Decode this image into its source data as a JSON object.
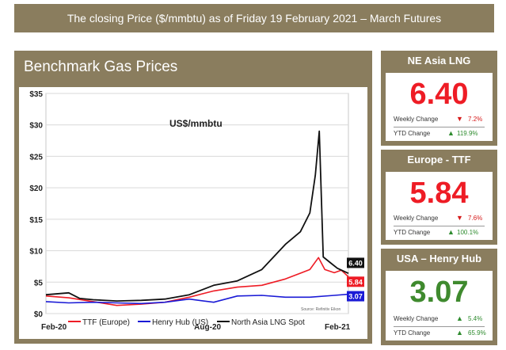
{
  "banner": {
    "text": "The closing Price ($/mmbtu) as of  Friday 19 February 2021 – March Futures"
  },
  "chart_panel": {
    "title": "Benchmark Gas Prices"
  },
  "chart_data": {
    "type": "line",
    "title": "Benchmark Gas Prices",
    "unit_label": "US$/mmbtu",
    "source_note": "Source: Refinitiv Eikon",
    "ylim": [
      0,
      35
    ],
    "y_ticks": [
      "$0",
      "$5",
      "$10",
      "$15",
      "$20",
      "$25",
      "$30",
      "$35"
    ],
    "x_ticks": [
      "Feb-20",
      "Aug-20",
      "Feb-21"
    ],
    "x_range": [
      "2020-02-01",
      "2021-02-19"
    ],
    "grid": true,
    "legend_position": "bottom",
    "series": [
      {
        "name": "TTF (Europe)",
        "color": "#ee1c25",
        "end_label": "5.84",
        "points": [
          [
            "2020-02-01",
            2.8
          ],
          [
            "2020-03-01",
            2.5
          ],
          [
            "2020-04-01",
            1.9
          ],
          [
            "2020-05-01",
            1.3
          ],
          [
            "2020-06-01",
            1.5
          ],
          [
            "2020-07-01",
            1.8
          ],
          [
            "2020-08-01",
            2.6
          ],
          [
            "2020-09-01",
            3.6
          ],
          [
            "2020-10-01",
            4.2
          ],
          [
            "2020-11-01",
            4.5
          ],
          [
            "2020-12-01",
            5.5
          ],
          [
            "2021-01-01",
            7.0
          ],
          [
            "2021-01-12",
            8.9
          ],
          [
            "2021-01-20",
            7.0
          ],
          [
            "2021-02-01",
            6.5
          ],
          [
            "2021-02-10",
            6.9
          ],
          [
            "2021-02-19",
            5.84
          ]
        ]
      },
      {
        "name": "Henry Hub (US)",
        "color": "#1a1ad6",
        "end_label": "3.07",
        "points": [
          [
            "2020-02-01",
            1.9
          ],
          [
            "2020-03-01",
            1.7
          ],
          [
            "2020-04-01",
            1.8
          ],
          [
            "2020-05-01",
            1.7
          ],
          [
            "2020-06-01",
            1.6
          ],
          [
            "2020-07-01",
            1.8
          ],
          [
            "2020-08-01",
            2.3
          ],
          [
            "2020-09-01",
            1.8
          ],
          [
            "2020-10-01",
            2.8
          ],
          [
            "2020-11-01",
            2.9
          ],
          [
            "2020-12-01",
            2.6
          ],
          [
            "2021-01-01",
            2.6
          ],
          [
            "2021-02-01",
            2.9
          ],
          [
            "2021-02-19",
            3.07
          ]
        ]
      },
      {
        "name": "North Asia LNG Spot",
        "color": "#111111",
        "end_label": "6.40",
        "points": [
          [
            "2020-02-01",
            3.0
          ],
          [
            "2020-03-01",
            3.3
          ],
          [
            "2020-03-15",
            2.4
          ],
          [
            "2020-04-01",
            2.2
          ],
          [
            "2020-05-01",
            2.0
          ],
          [
            "2020-06-01",
            2.1
          ],
          [
            "2020-07-01",
            2.3
          ],
          [
            "2020-08-01",
            3.0
          ],
          [
            "2020-09-01",
            4.5
          ],
          [
            "2020-10-01",
            5.2
          ],
          [
            "2020-11-01",
            7.0
          ],
          [
            "2020-12-01",
            11.0
          ],
          [
            "2020-12-20",
            13.0
          ],
          [
            "2021-01-01",
            16.0
          ],
          [
            "2021-01-08",
            22.0
          ],
          [
            "2021-01-13",
            29.0
          ],
          [
            "2021-01-18",
            9.0
          ],
          [
            "2021-01-28",
            8.0
          ],
          [
            "2021-02-05",
            7.2
          ],
          [
            "2021-02-19",
            6.4
          ]
        ]
      }
    ]
  },
  "cards": [
    {
      "id": "ne-asia-lng",
      "title": "NE Asia LNG",
      "price": "6.40",
      "price_color": "#ee1c25",
      "weekly_label": "Weekly Change",
      "weekly_value": "7.2%",
      "weekly_dir": "down",
      "ytd_label": "YTD Change",
      "ytd_value": "119.9%",
      "ytd_dir": "up"
    },
    {
      "id": "europe-ttf",
      "title": "Europe - TTF",
      "price": "5.84",
      "price_color": "#ee1c25",
      "weekly_label": "Weekly Change",
      "weekly_value": "7.6%",
      "weekly_dir": "down",
      "ytd_label": "YTD Change",
      "ytd_value": "100.1%",
      "ytd_dir": "up"
    },
    {
      "id": "usa-henry-hub",
      "title": "USA – Henry Hub",
      "price": "3.07",
      "price_color": "#3f8a2e",
      "weekly_label": "Weekly Change",
      "weekly_value": "5.4%",
      "weekly_dir": "up",
      "ytd_label": "YTD Change",
      "ytd_value": "65.9%",
      "ytd_dir": "up"
    }
  ],
  "colors": {
    "frame": "#8a7d5e",
    "up": "#2e8b2e",
    "down": "#d61a1a"
  }
}
